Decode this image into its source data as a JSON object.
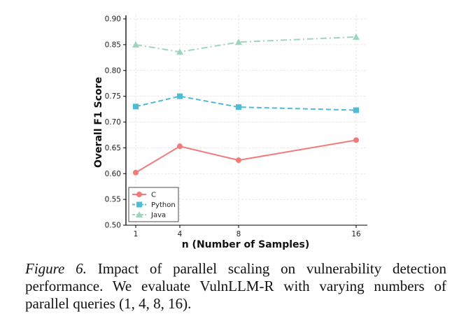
{
  "chart_data": {
    "type": "line",
    "title": "",
    "xlabel": "n (Number of Samples)",
    "ylabel": "Overall F1 Score",
    "x": [
      1,
      4,
      8,
      16
    ],
    "xticks": [
      "1",
      "4",
      "8",
      "16"
    ],
    "xlim": [
      0.4,
      16.8
    ],
    "ylim": [
      0.5,
      0.9
    ],
    "yticks": [
      "0.50",
      "0.55",
      "0.60",
      "0.65",
      "0.70",
      "0.75",
      "0.80",
      "0.85",
      "0.90"
    ],
    "grid": true,
    "legend_position": "bottom-left",
    "series": [
      {
        "name": "C",
        "values": [
          0.602,
          0.653,
          0.626,
          0.665
        ],
        "color": "#f47a7a",
        "marker": "circle",
        "linestyle": "solid"
      },
      {
        "name": "Python",
        "values": [
          0.73,
          0.75,
          0.729,
          0.723
        ],
        "color": "#4ebcd5",
        "marker": "square",
        "linestyle": "dashed"
      },
      {
        "name": "Java",
        "values": [
          0.85,
          0.836,
          0.855,
          0.865
        ],
        "color": "#9ed5bd",
        "marker": "triangle",
        "linestyle": "dashdot"
      }
    ]
  },
  "caption": {
    "label": "Figure 6.",
    "text": "Impact of parallel scaling on vulnerability detection performance. We evaluate VulnLLM-R with varying numbers of parallel queries (1, 4, 8, 16)."
  }
}
